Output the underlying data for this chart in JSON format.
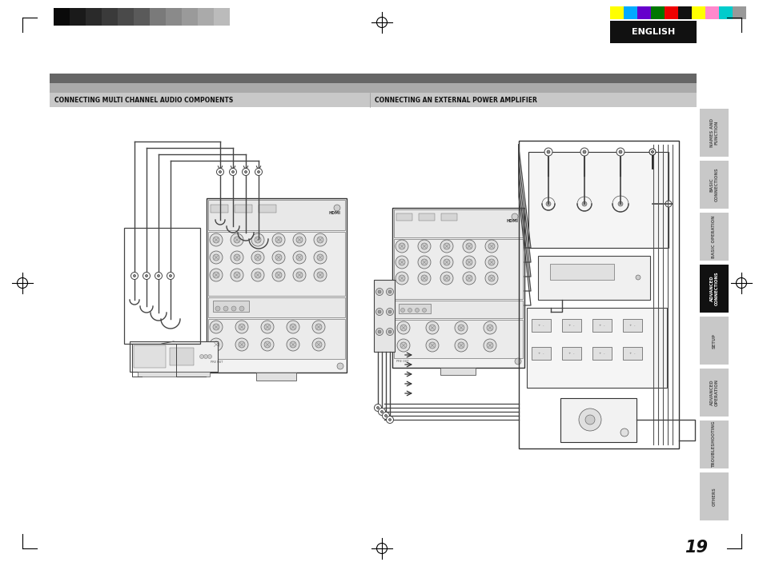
{
  "page_bg": "#ffffff",
  "page_num": "19",
  "title_left": "CONNECTING MULTI CHANNEL AUDIO COMPONENTS",
  "title_right": "CONNECTING AN EXTERNAL POWER AMPLIFIER",
  "english_text": "ENGLISH",
  "english_box_color": "#111111",
  "side_tabs": [
    "NAMES AND\nFUNCTION",
    "BASIC\nCONNECTIONS",
    "BASIC OPERATION",
    "ADVANCED\nCONNECTIONS",
    "SETUP",
    "ADVANCED\nOPERATION",
    "TROUBLESHOOTING",
    "OTHERS"
  ],
  "active_tab": 3,
  "active_tab_color": "#111111",
  "inactive_tab_color": "#c8c8c8",
  "color_bar_colors": [
    "#ffff00",
    "#00aaff",
    "#6600cc",
    "#007700",
    "#ee0000",
    "#111111",
    "#ffff00",
    "#ff88cc",
    "#00cccc",
    "#999999"
  ],
  "grayscale_bar_colors": [
    "#0a0a0a",
    "#1a1a1a",
    "#2a2a2a",
    "#3a3a3a",
    "#4a4a4a",
    "#5a5a5a",
    "#7a7a7a",
    "#8a8a8a",
    "#9a9a9a",
    "#aaaaaa",
    "#bbbbbb"
  ]
}
